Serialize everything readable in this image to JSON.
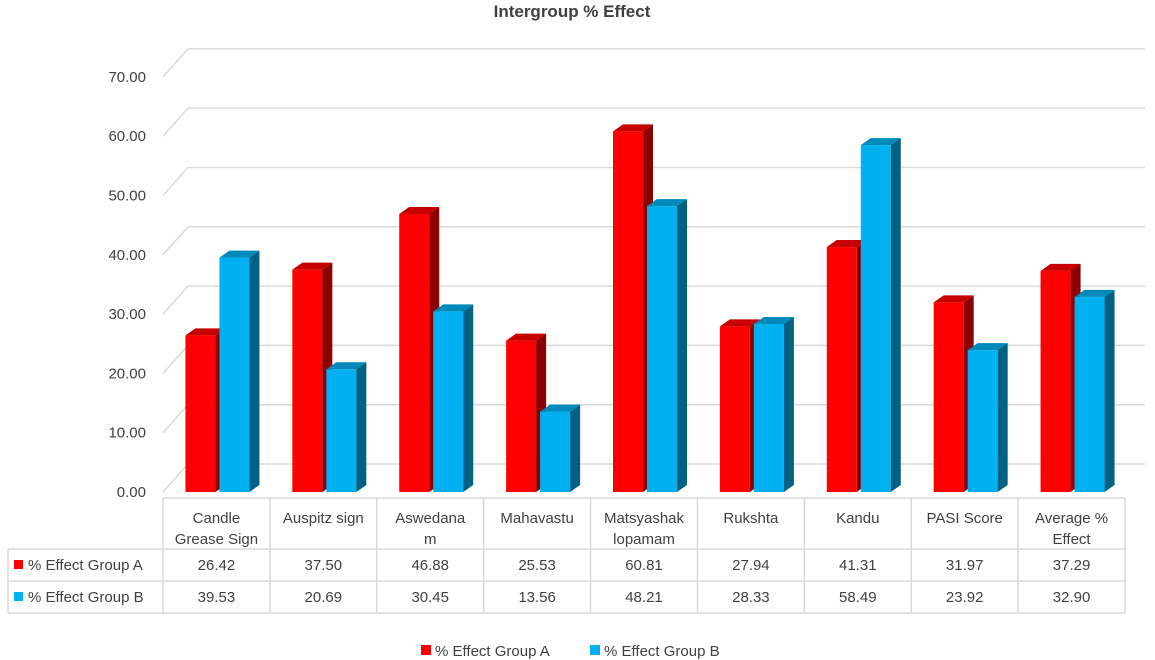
{
  "chart_data": {
    "type": "bar",
    "title": "Intergroup % Effect",
    "categories": [
      [
        "Candle",
        "Grease Sign"
      ],
      [
        "Auspitz sign"
      ],
      [
        "Aswedana",
        "m"
      ],
      [
        "Mahavastu"
      ],
      [
        "Matsyashak",
        "lopamam"
      ],
      [
        "Rukshta"
      ],
      [
        "Kandu"
      ],
      [
        "PASI Score"
      ],
      [
        "Average %",
        "Effect"
      ]
    ],
    "series": [
      {
        "name": "% Effect Group A",
        "color": "#ff0000",
        "values": [
          26.42,
          37.5,
          46.88,
          25.53,
          60.81,
          27.94,
          41.31,
          31.97,
          37.29
        ],
        "labels": [
          "26.42",
          "37.50",
          "46.88",
          "25.53",
          "60.81",
          "27.94",
          "41.31",
          "31.97",
          "37.29"
        ]
      },
      {
        "name": "% Effect Group B",
        "color": "#00b0f0",
        "values": [
          39.53,
          20.69,
          30.45,
          13.56,
          48.21,
          28.33,
          58.49,
          23.92,
          32.9
        ],
        "labels": [
          "39.53",
          "20.69",
          "30.45",
          "13.56",
          "48.21",
          "28.33",
          "58.49",
          "23.92",
          "32.90"
        ]
      }
    ],
    "yticks": [
      "0.00",
      "10.00",
      "20.00",
      "30.00",
      "40.00",
      "50.00",
      "60.00",
      "70.00"
    ],
    "ylim": [
      0,
      70
    ],
    "grid": true,
    "legend_position": "bottom",
    "data_table": true
  }
}
